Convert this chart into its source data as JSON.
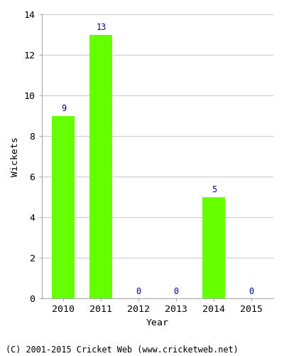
{
  "years": [
    "2010",
    "2011",
    "2012",
    "2013",
    "2014",
    "2015"
  ],
  "values": [
    9,
    13,
    0,
    0,
    5,
    0
  ],
  "bar_color": "#66ff00",
  "bar_edgecolor": "#66ff00",
  "label_color": "#00008b",
  "xlabel": "Year",
  "ylabel": "Wickets",
  "ylim": [
    0,
    14
  ],
  "yticks": [
    0,
    2,
    4,
    6,
    8,
    10,
    12,
    14
  ],
  "grid_color": "#cccccc",
  "background_color": "#ffffff",
  "footer": "(C) 2001-2015 Cricket Web (www.cricketweb.net)",
  "label_fontsize": 8.5,
  "axis_fontsize": 9.5,
  "footer_fontsize": 8.5,
  "bar_width": 0.6
}
